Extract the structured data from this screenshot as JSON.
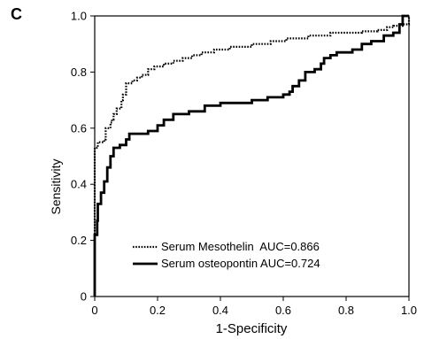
{
  "panel_label": "C",
  "chart_data": {
    "type": "line",
    "title": "",
    "xlabel": "1-Specificity",
    "ylabel": "Sensitivity",
    "xlim": [
      0,
      1
    ],
    "ylim": [
      0,
      1
    ],
    "xticks": [
      "0",
      "0.2",
      "0.4",
      "0.6",
      "0.8",
      "1.0"
    ],
    "yticks": [
      "0",
      "0.2",
      "0.4",
      "0.6",
      "0.8",
      "1.0"
    ],
    "grid": false,
    "legend_position": "bottom-center",
    "series": [
      {
        "name": "Serum Mesothelin  AUC=0.866",
        "style": "dotted",
        "color": "#000000",
        "points": [
          [
            0,
            0
          ],
          [
            0,
            0.53
          ],
          [
            0.01,
            0.55
          ],
          [
            0.03,
            0.56
          ],
          [
            0.035,
            0.6
          ],
          [
            0.05,
            0.62
          ],
          [
            0.055,
            0.63
          ],
          [
            0.06,
            0.65
          ],
          [
            0.07,
            0.67
          ],
          [
            0.085,
            0.7
          ],
          [
            0.09,
            0.72
          ],
          [
            0.1,
            0.76
          ],
          [
            0.12,
            0.77
          ],
          [
            0.135,
            0.78
          ],
          [
            0.15,
            0.79
          ],
          [
            0.17,
            0.81
          ],
          [
            0.19,
            0.82
          ],
          [
            0.22,
            0.83
          ],
          [
            0.25,
            0.84
          ],
          [
            0.28,
            0.85
          ],
          [
            0.31,
            0.86
          ],
          [
            0.34,
            0.87
          ],
          [
            0.38,
            0.88
          ],
          [
            0.43,
            0.89
          ],
          [
            0.5,
            0.9
          ],
          [
            0.56,
            0.91
          ],
          [
            0.61,
            0.92
          ],
          [
            0.68,
            0.93
          ],
          [
            0.75,
            0.94
          ],
          [
            0.85,
            0.945
          ],
          [
            0.9,
            0.95
          ],
          [
            0.93,
            0.96
          ],
          [
            0.95,
            0.965
          ],
          [
            0.98,
            0.97
          ],
          [
            1.0,
            1.0
          ]
        ]
      },
      {
        "name": "Serum osteopontin AUC=0.724",
        "style": "solid",
        "color": "#000000",
        "points": [
          [
            0,
            0
          ],
          [
            0,
            0.22
          ],
          [
            0.008,
            0.27
          ],
          [
            0.01,
            0.33
          ],
          [
            0.02,
            0.37
          ],
          [
            0.03,
            0.41
          ],
          [
            0.04,
            0.46
          ],
          [
            0.05,
            0.5
          ],
          [
            0.06,
            0.53
          ],
          [
            0.08,
            0.54
          ],
          [
            0.1,
            0.56
          ],
          [
            0.11,
            0.58
          ],
          [
            0.17,
            0.59
          ],
          [
            0.2,
            0.61
          ],
          [
            0.22,
            0.63
          ],
          [
            0.25,
            0.65
          ],
          [
            0.3,
            0.66
          ],
          [
            0.35,
            0.68
          ],
          [
            0.4,
            0.69
          ],
          [
            0.5,
            0.7
          ],
          [
            0.55,
            0.71
          ],
          [
            0.6,
            0.72
          ],
          [
            0.62,
            0.73
          ],
          [
            0.63,
            0.75
          ],
          [
            0.65,
            0.77
          ],
          [
            0.67,
            0.8
          ],
          [
            0.7,
            0.81
          ],
          [
            0.72,
            0.83
          ],
          [
            0.73,
            0.85
          ],
          [
            0.75,
            0.86
          ],
          [
            0.77,
            0.87
          ],
          [
            0.82,
            0.88
          ],
          [
            0.85,
            0.9
          ],
          [
            0.88,
            0.91
          ],
          [
            0.92,
            0.93
          ],
          [
            0.95,
            0.94
          ],
          [
            0.97,
            0.97
          ],
          [
            0.98,
            1.0
          ],
          [
            1.0,
            1.0
          ]
        ]
      }
    ]
  }
}
